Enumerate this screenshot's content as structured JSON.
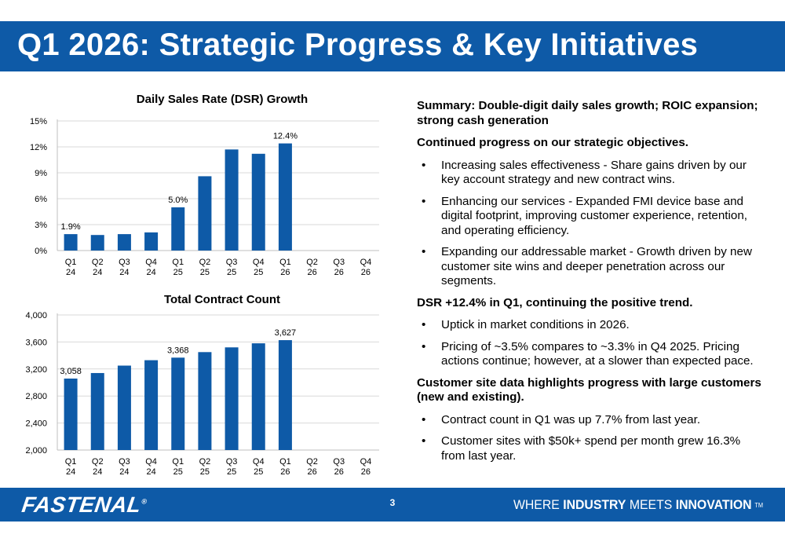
{
  "slide": {
    "title": "Q1 2026: Strategic Progress & Key Initiatives",
    "page_number": "3"
  },
  "footer": {
    "logo_text": "FASTENAL",
    "logo_mark": "®",
    "tagline_part1": "WHERE",
    "tagline_part2": "INDUSTRY",
    "tagline_part3": "MEETS",
    "tagline_part4": "INNOVATION",
    "tagline_tm": "TM",
    "brand_color": "#0e5aa7"
  },
  "chart_data": [
    {
      "type": "bar",
      "title": "Daily Sales Rate (DSR) Growth",
      "categories": [
        [
          "Q1",
          "24"
        ],
        [
          "Q2",
          "24"
        ],
        [
          "Q3",
          "24"
        ],
        [
          "Q4",
          "24"
        ],
        [
          "Q1",
          "25"
        ],
        [
          "Q2",
          "25"
        ],
        [
          "Q3",
          "25"
        ],
        [
          "Q4",
          "25"
        ],
        [
          "Q1",
          "26"
        ],
        [
          "Q2",
          "26"
        ],
        [
          "Q3",
          "26"
        ],
        [
          "Q4",
          "26"
        ]
      ],
      "values": [
        1.9,
        1.8,
        1.9,
        2.1,
        5.0,
        8.6,
        11.7,
        11.2,
        12.4,
        null,
        null,
        null
      ],
      "data_labels": [
        "1.9%",
        null,
        null,
        null,
        "5.0%",
        null,
        null,
        null,
        "12.4%",
        null,
        null,
        null
      ],
      "y_ticks": [
        0,
        3,
        6,
        9,
        12,
        15
      ],
      "y_tick_labels": [
        "0%",
        "3%",
        "6%",
        "9%",
        "12%",
        "15%"
      ],
      "ylim": [
        0,
        15
      ],
      "grid": true,
      "color": "#0e5aa7"
    },
    {
      "type": "bar",
      "title": "Total Contract Count",
      "categories": [
        [
          "Q1",
          "24"
        ],
        [
          "Q2",
          "24"
        ],
        [
          "Q3",
          "24"
        ],
        [
          "Q4",
          "24"
        ],
        [
          "Q1",
          "25"
        ],
        [
          "Q2",
          "25"
        ],
        [
          "Q3",
          "25"
        ],
        [
          "Q4",
          "25"
        ],
        [
          "Q1",
          "26"
        ],
        [
          "Q2",
          "26"
        ],
        [
          "Q3",
          "26"
        ],
        [
          "Q4",
          "26"
        ]
      ],
      "values": [
        3058,
        3140,
        3250,
        3330,
        3368,
        3450,
        3520,
        3580,
        3627,
        null,
        null,
        null
      ],
      "data_labels": [
        "3,058",
        null,
        null,
        null,
        "3,368",
        null,
        null,
        null,
        "3,627",
        null,
        null,
        null
      ],
      "y_ticks": [
        2000,
        2400,
        2800,
        3200,
        3600,
        4000
      ],
      "y_tick_labels": [
        "2,000",
        "2,400",
        "2,800",
        "3,200",
        "3,600",
        "4,000"
      ],
      "ylim": [
        2000,
        4000
      ],
      "grid": true,
      "color": "#0e5aa7"
    }
  ],
  "summary": {
    "heading1": "Summary: Double-digit daily sales growth; ROIC expansion; strong cash generation",
    "heading2": "Continued progress on our strategic objectives.",
    "bullets2": [
      "Increasing sales effectiveness - Share gains driven by our key account strategy and new contract wins.",
      "Enhancing our services - Expanded FMI device base and digital footprint, improving customer experience, retention, and operating efficiency.",
      "Expanding our addressable market - Growth driven by new customer site wins and deeper penetration across our segments."
    ],
    "heading3": "DSR +12.4% in Q1, continuing the positive trend.",
    "bullets3": [
      "Uptick in market conditions in 2026.",
      "Pricing of ~3.5% compares to ~3.3% in Q4 2025. Pricing actions continue; however, at a slower than expected pace."
    ],
    "heading4": "Customer site data highlights progress with large customers (new and existing).",
    "bullets4": [
      "Contract count in Q1 was up 7.7% from last year.",
      "Customer sites with $50k+ spend per month grew 16.3% from last year."
    ]
  }
}
